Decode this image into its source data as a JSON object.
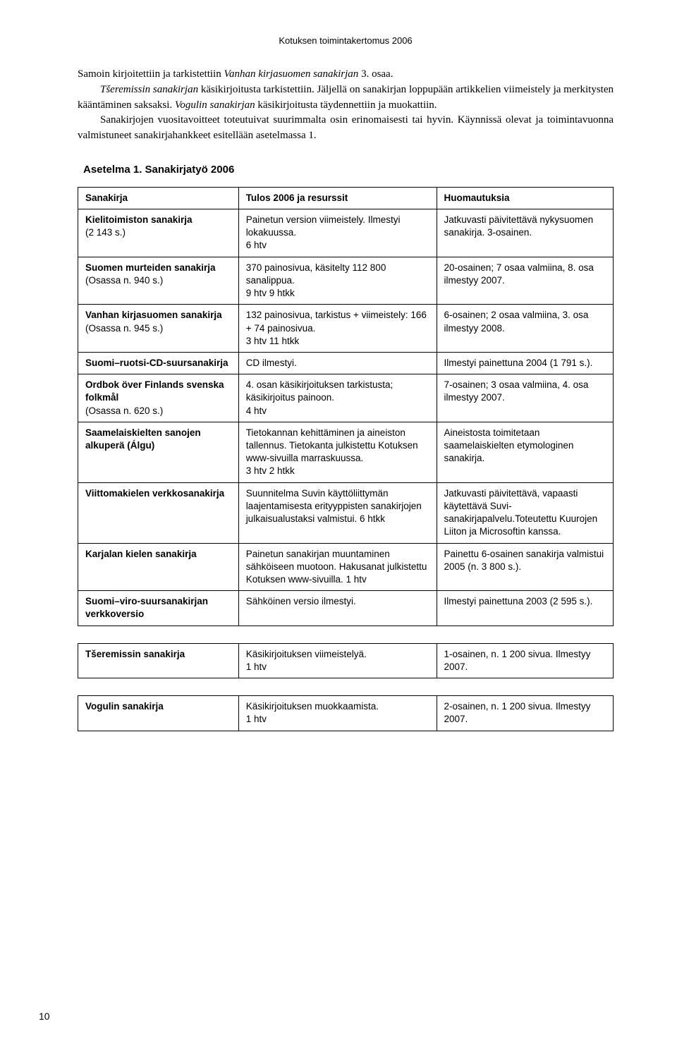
{
  "header": "Kotuksen toimintakertomus 2006",
  "para": {
    "l1a": "Samoin kirjoitettiin ja tarkistettiin ",
    "l1b": "Vanhan kirjasuomen sanakirjan",
    "l1c": " 3. osaa.",
    "l2a": "Tšeremissin sanakirjan",
    "l2b": " käsikirjoitusta tarkistettiin. Jäljellä on sanakirjan loppupään artikkelien viimeistely ja merkitysten kääntäminen saksaksi. ",
    "l2c": "Vogulin sanakirjan",
    "l2d": " käsikirjoitusta täydennettiin ja muokattiin.",
    "l3": "Sanakirjojen vuositavoitteet toteutuivat suurimmalta osin erinomaisesti tai hyvin. Käynnissä olevat ja toimintavuonna valmistuneet sanakirjahankkeet esitellään asetelmassa 1."
  },
  "heading": "Asetelma 1. Sanakirjatyö 2006",
  "table": {
    "headers": [
      "Sanakirja",
      "Tulos 2006 ja resurssit",
      "Huomautuksia"
    ],
    "rows": [
      {
        "a_bold": "Kielitoimiston sanakirja",
        "a_rest": "(2 143 s.)",
        "b": "Painetun version viimeistely. Ilmestyi lokakuussa.\n6 htv",
        "c": "Jatkuvasti päivitettävä nykysuomen sanakirja. 3-osainen."
      },
      {
        "a_bold": "Suomen murteiden sanakirja",
        "a_rest": "(Osassa n. 940 s.)",
        "b": "370 painosivua, käsitelty 112 800 sanalippua.\n9 htv 9 htkk",
        "c": "20-osainen; 7 osaa valmiina, 8. osa ilmestyy 2007."
      },
      {
        "a_bold": "Vanhan kirjasuomen sanakirja",
        "a_rest": "(Osassa n. 945 s.)",
        "b": "132 painosivua, tarkistus + viimeistely: 166 + 74 painosivua.\n3 htv 11 htkk",
        "c": "6-osainen; 2 osaa valmiina, 3. osa ilmestyy 2008."
      },
      {
        "a_bold": "Suomi–ruotsi-CD-suursanakirja",
        "a_rest": "",
        "b": "CD ilmestyi.",
        "c": "Ilmestyi painettuna 2004 (1 791 s.)."
      },
      {
        "a_bold": "Ordbok över  Finlands svenska folkmål",
        "a_rest": "(Osassa n. 620 s.)",
        "b": "4. osan käsikirjoituksen tarkistusta; käsikirjoitus painoon.\n4 htv",
        "c": "7-osainen; 3 osaa valmiina, 4. osa ilmestyy 2007."
      },
      {
        "a_bold": "Saamelaiskielten sanojen alkuperä (Álgu)",
        "a_rest": "",
        "b": "Tietokannan kehittäminen ja aineiston tallennus. Tietokanta julkistettu Kotuksen www-sivuilla marraskuussa.\n3 htv 2 htkk",
        "c": "Aineistosta toimitetaan saamelaiskielten etymologinen sanakirja."
      },
      {
        "a_bold": "Viittomakielen verkkosanakirja",
        "a_rest": "",
        "b": "Suunnitelma Suvin käyttöliittymän laajentamisesta erityyppisten sanakirjojen julkaisualustaksi valmistui. 6 htkk",
        "c": "Jatkuvasti päivitettävä, vapaasti käytettävä Suvi-sanakirjapalvelu.Toteutettu Kuurojen Liiton ja Microsoftin kanssa."
      },
      {
        "a_bold": "Karjalan kielen sanakirja",
        "a_rest": "",
        "b": "Painetun sanakirjan muuntaminen sähköiseen muotoon. Hakusanat julkistettu Kotuksen www-sivuilla. 1 htv",
        "c": "Painettu 6-osainen sanakirja valmistui 2005 (n. 3 800 s.)."
      },
      {
        "a_bold": "Suomi–viro-suursanakirjan verkkoversio",
        "a_rest": "",
        "b": "Sähköinen versio ilmestyi.",
        "c": "Ilmestyi painettuna 2003 (2 595 s.)."
      }
    ],
    "rows2": [
      {
        "a_bold": "Tšeremissin sanakirja",
        "a_rest": "",
        "b": "Käsikirjoituksen  viimeistelyä.\n1 htv",
        "c": "1-osainen, n. 1 200 sivua. Ilmestyy 2007."
      }
    ],
    "rows3": [
      {
        "a_bold": "Vogulin sanakirja",
        "a_rest": "",
        "b": "Käsikirjoituksen muokkaamista.\n1 htv",
        "c": "2-osainen, n. 1 200 sivua. Ilmestyy 2007."
      }
    ]
  },
  "pagenum": "10"
}
